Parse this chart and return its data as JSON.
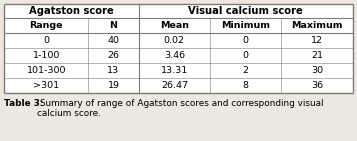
{
  "col_headers_row1": [
    "Agatston score",
    "Visual calcium score"
  ],
  "col_headers_row2": [
    "Range",
    "N",
    "Mean",
    "Minimum",
    "Maximum"
  ],
  "rows": [
    [
      "0",
      "40",
      "0.02",
      "0",
      "12"
    ],
    [
      "1-100",
      "26",
      "3.46",
      "0",
      "21"
    ],
    [
      "101-300",
      "13",
      "13.31",
      "2",
      "30"
    ],
    [
      ">301",
      "19",
      "26.47",
      "8",
      "36"
    ]
  ],
  "caption_bold": "Table 3:",
  "caption_normal": " Summary of range of Agatston scores and corresponding visual calcium score.",
  "bg_color": "#ece8df",
  "table_bg": "#ffffff",
  "border_color": "#7a7a7a",
  "text_color": "#000000",
  "figsize": [
    3.57,
    1.41
  ],
  "dpi": 100
}
